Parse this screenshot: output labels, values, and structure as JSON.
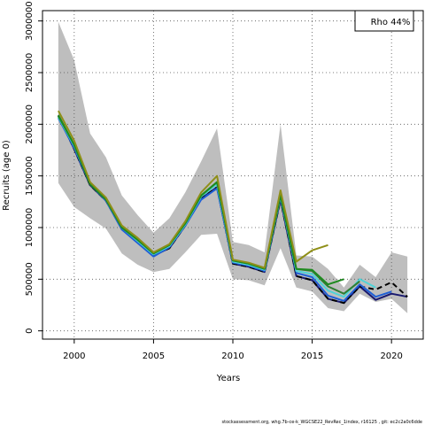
{
  "chart_data": {
    "type": "line",
    "title": "",
    "xlabel": "Years",
    "ylabel": "Recruits (age 0)",
    "xlim": [
      1998,
      2022
    ],
    "ylim": [
      -80000,
      3100000
    ],
    "x_ticks": [
      2000,
      2005,
      2010,
      2015,
      2020
    ],
    "y_ticks": [
      0,
      500000,
      1000000,
      1500000,
      2000000,
      2500000,
      3000000
    ],
    "grid": true,
    "legend": {
      "text": "Rho 44%",
      "position": "top-right"
    },
    "footnote": "stockassessment.org, whg.7b-ce-k_WGCSE22_RevRec_1index, r16125 , git: ec2c2a0c6dde",
    "confidence_band": {
      "x": [
        1999,
        2000,
        2001,
        2002,
        2003,
        2004,
        2005,
        2006,
        2007,
        2008,
        2009,
        2010,
        2011,
        2012,
        2013,
        2014,
        2015,
        2016,
        2017,
        2018,
        2019,
        2020,
        2021
      ],
      "lower": [
        1430000,
        1200000,
        1090000,
        990000,
        750000,
        640000,
        570000,
        600000,
        760000,
        930000,
        940000,
        500000,
        490000,
        440000,
        800000,
        420000,
        380000,
        220000,
        190000,
        360000,
        280000,
        310000,
        170000
      ],
      "upper": [
        2990000,
        2620000,
        1910000,
        1680000,
        1310000,
        1120000,
        950000,
        1090000,
        1340000,
        1640000,
        1960000,
        860000,
        830000,
        760000,
        2000000,
        730000,
        720000,
        600000,
        420000,
        640000,
        520000,
        760000,
        720000
      ],
      "color": "#bebebe"
    },
    "series": [
      {
        "x": [
          1999,
          2000,
          2001,
          2002,
          2003,
          2004,
          2005,
          2006,
          2007,
          2008,
          2009,
          2010,
          2011,
          2012,
          2013,
          2014,
          2015,
          2016,
          2017,
          2018,
          2019,
          2020,
          2021
        ],
        "values": [
          2080000,
          1760000,
          1410000,
          1260000,
          990000,
          860000,
          730000,
          800000,
          1020000,
          1280000,
          1390000,
          650000,
          620000,
          570000,
          1270000,
          530000,
          490000,
          310000,
          270000,
          430000,
          300000,
          360000,
          330000
        ],
        "color": "#191970",
        "style": "solid"
      },
      {
        "x": [
          1999,
          2000,
          2001,
          2002,
          2003,
          2004,
          2005,
          2006,
          2007,
          2008,
          2009,
          2010,
          2011,
          2012,
          2013,
          2014,
          2015,
          2016,
          2017,
          2018,
          2019,
          2020,
          2021
        ],
        "values": [
          2080000,
          1760000,
          1410000,
          1260000,
          990000,
          860000,
          730000,
          800000,
          1020000,
          1280000,
          1390000,
          650000,
          620000,
          570000,
          1270000,
          530000,
          490000,
          310000,
          270000,
          430000,
          400000,
          470000,
          330000
        ],
        "color": "#000000",
        "style": "dashed"
      },
      {
        "x": [
          1999,
          2000,
          2001,
          2002,
          2003,
          2004,
          2005,
          2006,
          2007,
          2008,
          2009,
          2010,
          2011,
          2012,
          2013,
          2014,
          2015,
          2016,
          2017,
          2018,
          2019,
          2020
        ],
        "values": [
          2060000,
          1770000,
          1420000,
          1260000,
          980000,
          850000,
          720000,
          810000,
          1020000,
          1270000,
          1380000,
          660000,
          630000,
          580000,
          1290000,
          560000,
          520000,
          340000,
          290000,
          450000,
          330000,
          380000
        ],
        "color": "#1f5fd6",
        "style": "solid"
      },
      {
        "x": [
          1999,
          2000,
          2001,
          2002,
          2003,
          2004,
          2005,
          2006,
          2007,
          2008,
          2009,
          2010,
          2011,
          2012,
          2013,
          2014,
          2015,
          2016,
          2017,
          2018,
          2019
        ],
        "values": [
          2070000,
          1790000,
          1430000,
          1270000,
          1000000,
          870000,
          740000,
          820000,
          1030000,
          1300000,
          1420000,
          670000,
          640000,
          590000,
          1300000,
          580000,
          550000,
          390000,
          330000,
          500000,
          420000
        ],
        "color": "#4fd3d8",
        "style": "solid"
      },
      {
        "x": [
          1999,
          2000,
          2001,
          2002,
          2003,
          2004,
          2005,
          2006,
          2007,
          2008,
          2009,
          2010,
          2011,
          2012,
          2013,
          2014,
          2015,
          2016,
          2017,
          2018
        ],
        "values": [
          2090000,
          1800000,
          1430000,
          1280000,
          1000000,
          880000,
          750000,
          830000,
          1040000,
          1310000,
          1440000,
          680000,
          650000,
          600000,
          1310000,
          600000,
          580000,
          430000,
          360000,
          480000
        ],
        "color": "#2e7d32",
        "style": "solid"
      },
      {
        "x": [
          1999,
          2000,
          2001,
          2002,
          2003,
          2004,
          2005,
          2006,
          2007,
          2008,
          2009,
          2010,
          2011,
          2012,
          2013,
          2014,
          2015,
          2016,
          2017
        ],
        "values": [
          2080000,
          1800000,
          1420000,
          1270000,
          1000000,
          880000,
          750000,
          830000,
          1040000,
          1310000,
          1440000,
          680000,
          650000,
          600000,
          1310000,
          600000,
          590000,
          450000,
          500000
        ],
        "color": "#1f8a1f",
        "style": "solid"
      },
      {
        "x": [
          1999,
          2000,
          2001,
          2002,
          2003,
          2004,
          2005,
          2006,
          2007,
          2008,
          2009,
          2010,
          2011,
          2012,
          2013,
          2014,
          2015,
          2016
        ],
        "values": [
          2130000,
          1840000,
          1440000,
          1290000,
          1020000,
          900000,
          760000,
          840000,
          1060000,
          1340000,
          1500000,
          690000,
          660000,
          610000,
          1360000,
          670000,
          780000,
          830000
        ],
        "color": "#8f8f18",
        "style": "solid"
      }
    ]
  }
}
